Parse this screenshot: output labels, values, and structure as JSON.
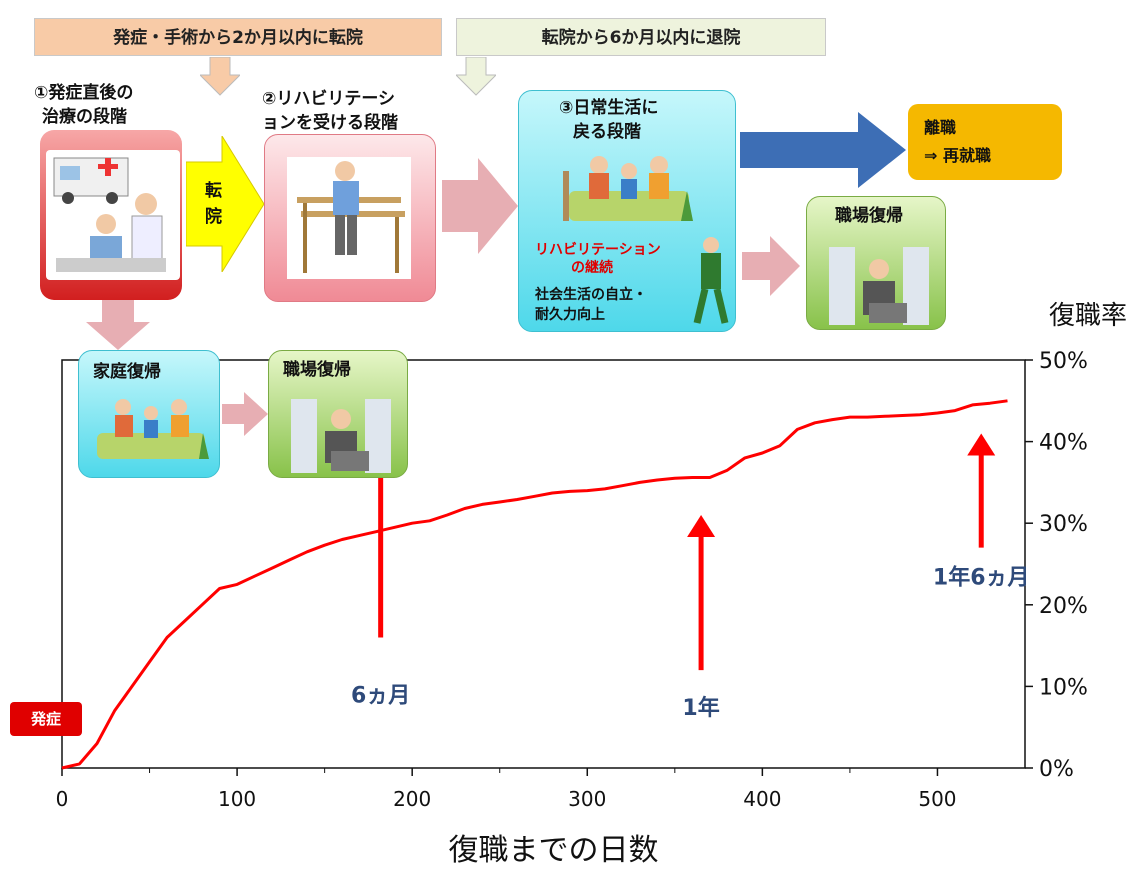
{
  "banners": {
    "left": "発症・手術から2か月以内に転院",
    "right": "転院から6か月以内に退院"
  },
  "stages": {
    "s1_line1": "①発症直後の",
    "s1_line2": "治療の段階",
    "s2_line1": "②リハビリテーシ",
    "s2_line2": "ョンを受ける段階",
    "s3_line1": "③日常生活に",
    "s3_line2": "戻る段階",
    "s3_rehab_line1": "リハビリテーション",
    "s3_rehab_line2": "の継続",
    "s3_social_line1": "社会生活の自立・",
    "s3_social_line2": "耐久力向上"
  },
  "transfer_arrow": {
    "char1": "転",
    "char2": "院"
  },
  "outcomes": {
    "leave_line1": "離職",
    "leave_line2": "⇒ 再就職",
    "return_work": "職場復帰",
    "home_return": "家庭復帰",
    "home_work": "職場復帰"
  },
  "colors": {
    "accent_red": "#ff0000",
    "annotation_blue": "#2e4a7a",
    "leave_orange": "#f5b800",
    "arrow_blue": "#3d6eb5"
  },
  "chart_data": {
    "type": "line",
    "xlabel": "復職までの日数",
    "ylabel": "復職率",
    "xlim": [
      0,
      550
    ],
    "ylim": [
      0,
      50
    ],
    "x_ticks": [
      0,
      100,
      200,
      300,
      400,
      500
    ],
    "x_tick_labels": [
      "0",
      "100",
      "200",
      "300",
      "400",
      "500"
    ],
    "y_ticks": [
      0,
      10,
      20,
      30,
      40,
      50
    ],
    "y_tick_labels": [
      "0%",
      "10%",
      "20%",
      "30%",
      "40%",
      "50%"
    ],
    "grid": false,
    "onset_label": "発症",
    "series": [
      {
        "color": "#ff0000",
        "points": [
          [
            0,
            0
          ],
          [
            10,
            0.5
          ],
          [
            20,
            3
          ],
          [
            30,
            7
          ],
          [
            40,
            10
          ],
          [
            50,
            13
          ],
          [
            60,
            16
          ],
          [
            70,
            18
          ],
          [
            80,
            20
          ],
          [
            90,
            22
          ],
          [
            100,
            22.5
          ],
          [
            110,
            23.5
          ],
          [
            120,
            24.5
          ],
          [
            130,
            25.5
          ],
          [
            140,
            26.5
          ],
          [
            150,
            27.3
          ],
          [
            160,
            28
          ],
          [
            170,
            28.5
          ],
          [
            180,
            29
          ],
          [
            190,
            29.5
          ],
          [
            200,
            30
          ],
          [
            210,
            30.3
          ],
          [
            220,
            31
          ],
          [
            230,
            31.8
          ],
          [
            240,
            32.3
          ],
          [
            250,
            32.6
          ],
          [
            260,
            32.9
          ],
          [
            270,
            33.3
          ],
          [
            280,
            33.7
          ],
          [
            290,
            33.9
          ],
          [
            300,
            34
          ],
          [
            310,
            34.2
          ],
          [
            320,
            34.6
          ],
          [
            330,
            35
          ],
          [
            340,
            35.3
          ],
          [
            350,
            35.5
          ],
          [
            360,
            35.6
          ],
          [
            370,
            35.6
          ],
          [
            380,
            36.5
          ],
          [
            390,
            38
          ],
          [
            400,
            38.6
          ],
          [
            410,
            39.5
          ],
          [
            420,
            41.5
          ],
          [
            430,
            42.3
          ],
          [
            440,
            42.7
          ],
          [
            450,
            43
          ],
          [
            460,
            43
          ],
          [
            470,
            43.1
          ],
          [
            480,
            43.2
          ],
          [
            490,
            43.3
          ],
          [
            500,
            43.5
          ],
          [
            510,
            43.8
          ],
          [
            520,
            44.5
          ],
          [
            530,
            44.7
          ],
          [
            540,
            45
          ]
        ]
      }
    ],
    "annotations": [
      {
        "text": "6ヵ月",
        "x": 182
      },
      {
        "text": "1年",
        "x": 365
      },
      {
        "text": "1年6ヵ月",
        "x": 525
      }
    ]
  }
}
